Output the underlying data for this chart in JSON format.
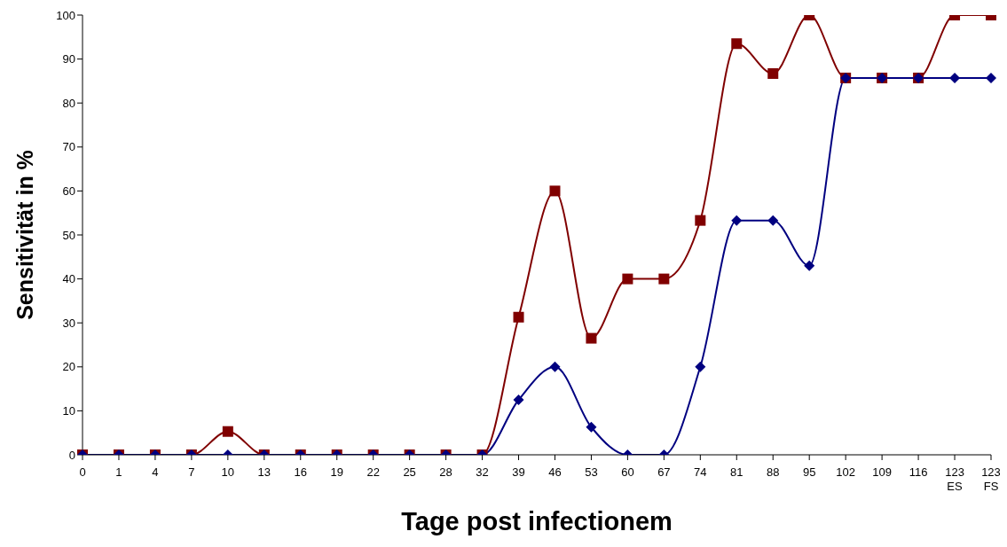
{
  "chart_data": {
    "type": "line",
    "xlabel": "Tage post infectionem",
    "ylabel": "Sensitivität in %",
    "categories": [
      "0",
      "1",
      "4",
      "7",
      "10",
      "13",
      "16",
      "19",
      "22",
      "25",
      "28",
      "32",
      "39",
      "46",
      "53",
      "60",
      "67",
      "74",
      "81",
      "88",
      "95",
      "102",
      "109",
      "116",
      "123\nES",
      "123\nFS"
    ],
    "series": [
      {
        "color": "#800000",
        "marker": "square",
        "values": [
          0,
          0,
          0,
          0,
          5.3,
          0,
          0,
          0,
          0,
          0,
          0,
          0,
          31.3,
          60,
          26.5,
          40,
          40,
          53.3,
          93.5,
          86.7,
          100,
          85.7,
          85.7,
          85.7,
          100,
          100
        ]
      },
      {
        "color": "#000080",
        "marker": "diamond",
        "values": [
          0,
          0,
          0,
          0,
          0,
          0,
          0,
          0,
          0,
          0,
          0,
          0,
          12.5,
          20,
          6.3,
          0,
          0,
          20,
          53.3,
          53.3,
          43,
          85.7,
          85.7,
          85.7,
          85.7,
          85.7
        ]
      }
    ],
    "ylim": [
      0,
      100
    ],
    "yticks": [
      0,
      10,
      20,
      30,
      40,
      50,
      60,
      70,
      80,
      90,
      100
    ],
    "grid": false,
    "legend": false
  }
}
